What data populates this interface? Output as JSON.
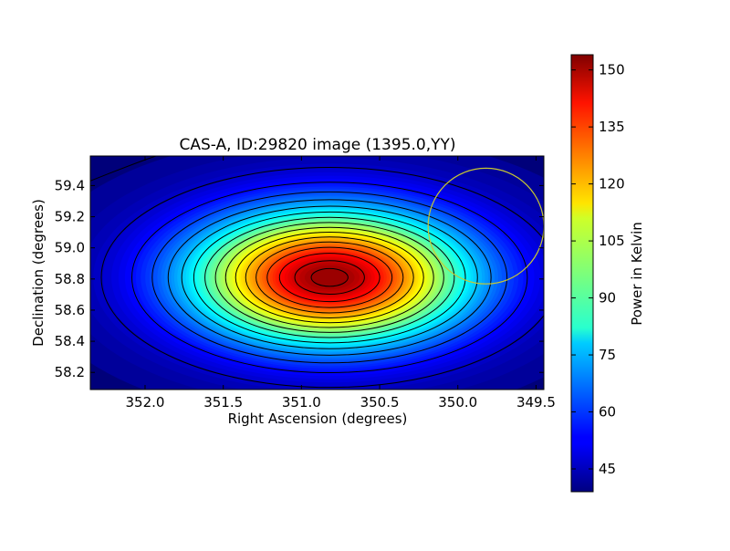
{
  "chart_data": {
    "type": "heatmap",
    "title": "CAS-A, ID:29820 image (1395.0,YY)",
    "xlabel": "Right Ascension (degrees)",
    "ylabel": "Declination (degrees)",
    "xlim": [
      352.35,
      349.45
    ],
    "ylim": [
      58.09,
      59.59
    ],
    "x_ticks": [
      352.0,
      351.5,
      351.0,
      350.5,
      350.0,
      349.5
    ],
    "x_tick_labels": [
      "352.0",
      "351.5",
      "351.0",
      "350.5",
      "350.0",
      "349.5"
    ],
    "y_ticks": [
      58.2,
      58.4,
      58.6,
      58.8,
      59.0,
      59.2,
      59.4
    ],
    "y_tick_labels": [
      "58.2",
      "58.4",
      "58.6",
      "58.8",
      "59.0",
      "59.2",
      "59.4"
    ],
    "source": {
      "name": "CAS-A",
      "ra": 350.82,
      "dec": 58.81,
      "peak_kelvin": 153
    },
    "background_kelvin": 41,
    "contour_levels_kelvin": [
      48,
      55,
      62,
      69,
      76,
      83,
      90,
      97,
      104,
      111,
      118,
      125,
      132,
      139,
      146,
      151
    ],
    "marker_circle": {
      "ra": 349.82,
      "dec": 59.14,
      "radius_deg": 0.37,
      "color": "#c8c832"
    },
    "colorbar": {
      "label": "Power in Kelvin",
      "min": 39,
      "max": 154,
      "ticks": [
        45,
        60,
        75,
        90,
        105,
        120,
        135,
        150
      ],
      "tick_labels": [
        "45",
        "60",
        "75",
        "90",
        "105",
        "120",
        "135",
        "150"
      ],
      "colormap": "jet"
    }
  }
}
